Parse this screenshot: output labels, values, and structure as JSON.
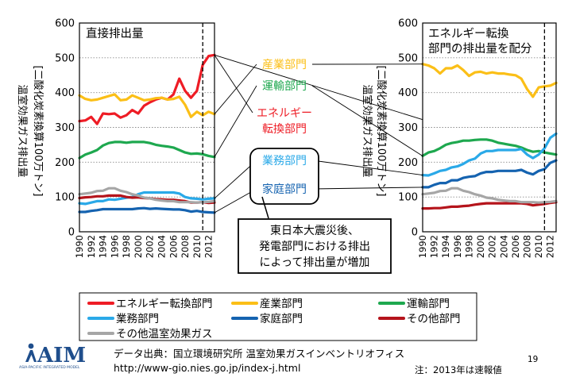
{
  "chart_data": [
    {
      "id": "left",
      "type": "line",
      "title": "直接排出量",
      "ylabel": [
        "温室効果ガス排出量",
        "[二酸化炭素換算100万トン]"
      ],
      "ylim": [
        0,
        600
      ],
      "yticks": [
        0,
        100,
        200,
        300,
        400,
        500,
        600
      ],
      "x": [
        1990,
        1991,
        1992,
        1993,
        1994,
        1995,
        1996,
        1997,
        1998,
        1999,
        2000,
        2001,
        2002,
        2003,
        2004,
        2005,
        2006,
        2007,
        2008,
        2009,
        2010,
        2011,
        2012,
        2013
      ],
      "xticks": [
        1990,
        1992,
        1994,
        1996,
        1998,
        2000,
        2002,
        2004,
        2006,
        2008,
        2010,
        2012
      ],
      "marker_year": 2011,
      "series": [
        {
          "key": "energy",
          "name": "エネルギー転換部門",
          "color": "#ee1c25",
          "values": [
            318,
            320,
            330,
            310,
            340,
            338,
            340,
            328,
            335,
            350,
            340,
            362,
            372,
            380,
            385,
            380,
            395,
            440,
            405,
            385,
            405,
            480,
            505,
            508
          ]
        },
        {
          "key": "industry",
          "name": "産業部門",
          "color": "#fbbf17",
          "values": [
            392,
            382,
            378,
            380,
            385,
            390,
            395,
            378,
            380,
            392,
            385,
            378,
            380,
            384,
            385,
            380,
            382,
            388,
            365,
            330,
            345,
            335,
            345,
            338
          ]
        },
        {
          "key": "transport",
          "name": "運輸部門",
          "color": "#1ea84f",
          "values": [
            212,
            222,
            228,
            235,
            248,
            255,
            258,
            258,
            256,
            258,
            258,
            258,
            255,
            250,
            247,
            245,
            242,
            235,
            228,
            224,
            225,
            223,
            218,
            215
          ]
        },
        {
          "key": "commercial",
          "name": "業務部門",
          "color": "#2aa9e8",
          "values": [
            82,
            80,
            84,
            88,
            88,
            93,
            92,
            95,
            98,
            100,
            108,
            113,
            113,
            113,
            113,
            113,
            113,
            110,
            100,
            96,
            95,
            93,
            95,
            96
          ]
        },
        {
          "key": "household",
          "name": "家庭部門",
          "color": "#1563b0",
          "values": [
            57,
            57,
            60,
            62,
            65,
            65,
            65,
            65,
            65,
            65,
            67,
            68,
            66,
            67,
            66,
            65,
            64,
            64,
            62,
            58,
            60,
            57,
            56,
            55
          ]
        },
        {
          "key": "other",
          "name": "その他部門",
          "color": "#b5141b",
          "values": [
            97,
            99,
            100,
            102,
            102,
            104,
            104,
            104,
            100,
            98,
            99,
            97,
            96,
            94,
            93,
            92,
            92,
            90,
            88,
            84,
            84,
            85,
            83,
            84
          ]
        },
        {
          "key": "ghg",
          "name": "その他温室効果ガス",
          "color": "#a6a6a6",
          "values": [
            108,
            110,
            112,
            117,
            118,
            125,
            125,
            118,
            114,
            108,
            104,
            98,
            96,
            92,
            90,
            88,
            88,
            85,
            85,
            85,
            84,
            85,
            86,
            88
          ]
        }
      ]
    },
    {
      "id": "right",
      "type": "line",
      "title": [
        "エネルギー転換",
        "部門の排出量を配分"
      ],
      "ylabel": [
        "温室効果ガス排出量",
        "[二酸化炭素換算100万トン]"
      ],
      "ylim": [
        0,
        600
      ],
      "yticks": [
        0,
        100,
        200,
        300,
        400,
        500,
        600
      ],
      "x": [
        1990,
        1991,
        1992,
        1993,
        1994,
        1995,
        1996,
        1997,
        1998,
        1999,
        2000,
        2001,
        2002,
        2003,
        2004,
        2005,
        2006,
        2007,
        2008,
        2009,
        2010,
        2011,
        2012,
        2013
      ],
      "xticks": [
        1990,
        1992,
        1994,
        1996,
        1998,
        2000,
        2002,
        2004,
        2006,
        2008,
        2010,
        2012
      ],
      "marker_year": 2011,
      "series": [
        {
          "key": "industry",
          "name": "産業部門",
          "color": "#fbbf17",
          "values": [
            482,
            478,
            470,
            455,
            470,
            470,
            478,
            465,
            448,
            458,
            460,
            455,
            458,
            455,
            455,
            452,
            450,
            440,
            410,
            388,
            415,
            418,
            420,
            428
          ]
        },
        {
          "key": "transport",
          "name": "運輸部門",
          "color": "#1ea84f",
          "values": [
            218,
            228,
            232,
            240,
            250,
            255,
            258,
            262,
            262,
            264,
            265,
            265,
            262,
            256,
            253,
            250,
            247,
            242,
            235,
            230,
            232,
            228,
            225,
            222
          ]
        },
        {
          "key": "commercial",
          "name": "業務部門",
          "color": "#2aa9e8",
          "values": [
            163,
            162,
            168,
            175,
            178,
            185,
            188,
            195,
            205,
            210,
            225,
            232,
            232,
            235,
            235,
            235,
            235,
            238,
            222,
            212,
            222,
            240,
            270,
            282
          ]
        },
        {
          "key": "household",
          "name": "家庭部門",
          "color": "#1563b0",
          "values": [
            128,
            128,
            135,
            140,
            140,
            148,
            148,
            155,
            158,
            160,
            168,
            172,
            172,
            175,
            175,
            175,
            175,
            178,
            170,
            165,
            175,
            180,
            198,
            205
          ]
        },
        {
          "key": "other",
          "name": "その他部門",
          "color": "#b5141b",
          "values": [
            67,
            67,
            68,
            68,
            70,
            72,
            72,
            74,
            75,
            78,
            80,
            82,
            82,
            82,
            82,
            82,
            82,
            82,
            80,
            76,
            78,
            80,
            83,
            85
          ]
        },
        {
          "key": "ghg",
          "name": "その他温室効果ガス",
          "color": "#a6a6a6",
          "values": [
            108,
            110,
            112,
            117,
            118,
            125,
            125,
            118,
            114,
            108,
            104,
            98,
            96,
            92,
            90,
            88,
            88,
            85,
            85,
            85,
            84,
            85,
            86,
            88
          ]
        }
      ]
    }
  ],
  "middle_labels": [
    {
      "key": "industry",
      "text": [
        "産業部門"
      ],
      "color": "#fbbf17"
    },
    {
      "key": "transport",
      "text": [
        "運輸部門"
      ],
      "color": "#1ea84f"
    },
    {
      "key": "energy",
      "text": [
        "エネルギー",
        "転換部門"
      ],
      "color": "#ee1c25"
    },
    {
      "key": "commercial",
      "text": [
        "業務部門"
      ],
      "color": "#2aa9e8"
    },
    {
      "key": "household",
      "text": [
        "家庭部門"
      ],
      "color": "#1563b0"
    }
  ],
  "annotation": [
    "東日本大震災後、",
    "発電部門における排出",
    "によって排出量が増加"
  ],
  "legend": [
    {
      "name": "エネルギー転換部門",
      "color": "#ee1c25"
    },
    {
      "name": "産業部門",
      "color": "#fbbf17"
    },
    {
      "name": "運輸部門",
      "color": "#1ea84f"
    },
    {
      "name": "業務部門",
      "color": "#2aa9e8"
    },
    {
      "name": "家庭部門",
      "color": "#1563b0"
    },
    {
      "name": "その他部門",
      "color": "#b5141b"
    },
    {
      "name": "その他温室効果ガス",
      "color": "#a6a6a6"
    }
  ],
  "footer": {
    "source_label": "データ出典：国立環境研究所 温室効果ガスインベントリオフィス",
    "source_url": "http://www-gio.nies.go.jp/index-j.html",
    "note": "注：2013年は速報値",
    "page_number": "19"
  },
  "logo": {
    "text": "AIM",
    "subtitle": "ASIA-PACIFIC INTEGRATED MODEL",
    "color": "#1f4e8c"
  }
}
